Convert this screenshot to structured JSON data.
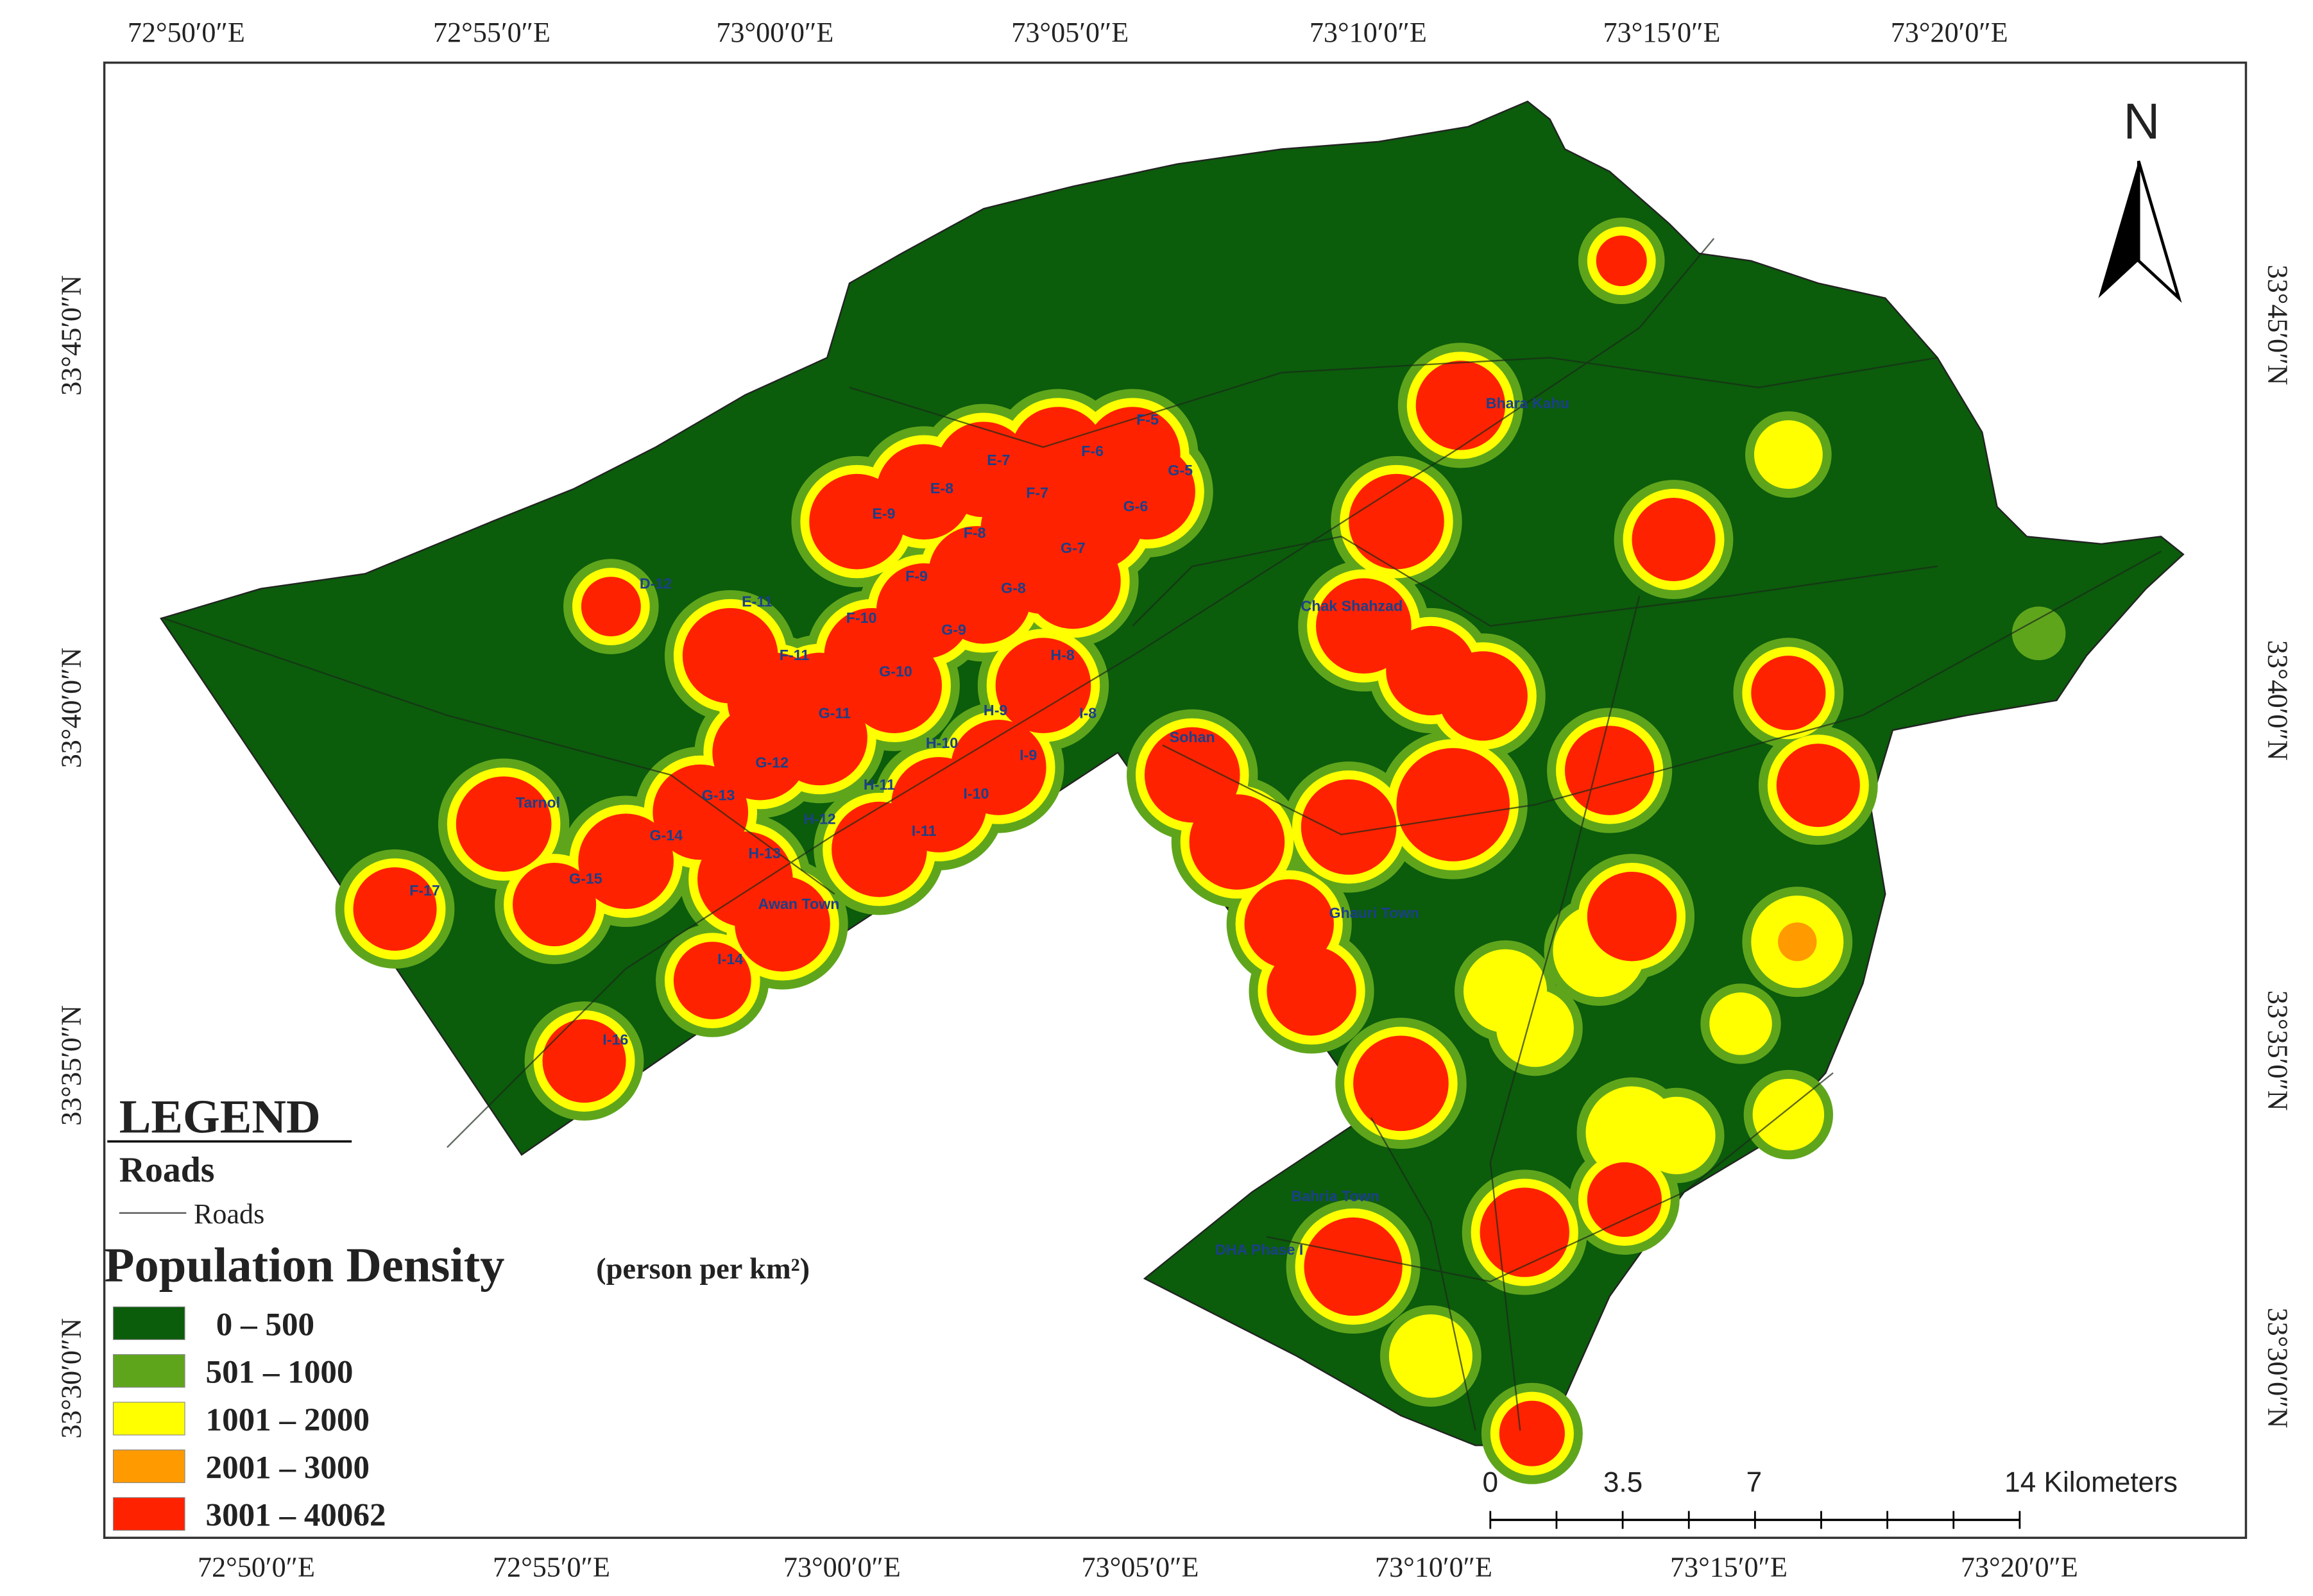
{
  "map": {
    "lon_top": [
      "72°50′0″E",
      "72°55′0″E",
      "73°00′0″E",
      "73°05′0″E",
      "73°10′0″E",
      "73°15′0″E",
      "73°20′0″E"
    ],
    "lon_bottom": [
      "72°50′0″E",
      "72°55′0″E",
      "73°00′0″E",
      "73°05′0″E",
      "73°10′0″E",
      "73°15′0″E",
      "73°20′0″E"
    ],
    "lat_left": [
      "33°45′0″N",
      "33°40′0″N",
      "33°35′0″N",
      "33°30′0″N"
    ],
    "lat_right": [
      "33°45′0″N",
      "33°40′0″N",
      "33°35′0″N",
      "33°30′0″N"
    ],
    "north": "N",
    "places": [
      "D-12",
      "E-11",
      "E-9",
      "E-8",
      "E-7",
      "F-6",
      "F-5",
      "G-5",
      "F-7",
      "G-6",
      "F-8",
      "G-7",
      "F-9",
      "G-8",
      "F-10",
      "G-9",
      "F-11",
      "G-10",
      "H-8",
      "H-9",
      "I-8",
      "G-11",
      "H-10",
      "I-9",
      "G-12",
      "H-11",
      "I-10",
      "G-13",
      "H-12",
      "I-11",
      "G-14",
      "H-13",
      "Tarnol",
      "G-15",
      "F-17",
      "Awan Town",
      "I-14",
      "I-16",
      "Bhara Kahu",
      "Chak Shahzad",
      "Sohan",
      "Ghauri Town",
      "Bahria Town",
      "DHA Phase I"
    ],
    "legend": {
      "title": "LEGEND",
      "roads_heading": "Roads",
      "roads_item": "Roads",
      "density_title": "Population Density",
      "density_unit": "(person per km²)",
      "classes": [
        {
          "label": "0 – 500",
          "color": "#0b5c0b"
        },
        {
          "label": "501 – 1000",
          "color": "#5fa51c"
        },
        {
          "label": "1001 – 2000",
          "color": "#ffff00"
        },
        {
          "label": "2001 – 3000",
          "color": "#ff9a00"
        },
        {
          "label": "3001 – 40062",
          "color": "#ff2200"
        }
      ]
    },
    "scale": {
      "labels": [
        "0",
        "3.5",
        "7",
        "14 Kilometers"
      ]
    }
  }
}
